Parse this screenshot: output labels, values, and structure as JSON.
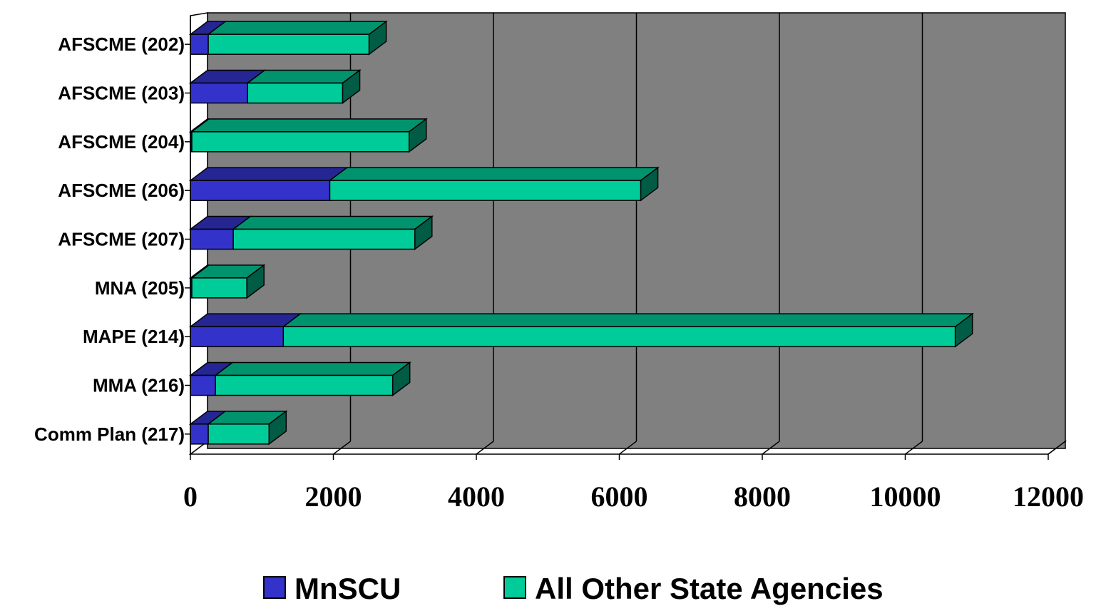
{
  "chart_data": {
    "type": "bar",
    "orientation": "horizontal",
    "stacked": true,
    "style": "3d",
    "categories": [
      "AFSCME (202)",
      "AFSCME (203)",
      "AFSCME (204)",
      "AFSCME (206)",
      "AFSCME (207)",
      "MNA (205)",
      "MAPE (214)",
      "MMA (216)",
      "Comm Plan (217)"
    ],
    "series": [
      {
        "name": "MnSCU",
        "color": "#3333cc",
        "values": [
          250,
          800,
          20,
          1950,
          600,
          20,
          1300,
          350,
          250
        ]
      },
      {
        "name": "All Other State Agencies",
        "color": "#00cc99",
        "values": [
          2250,
          1330,
          3040,
          4350,
          2540,
          770,
          9400,
          2480,
          850
        ]
      }
    ],
    "xlim": [
      0,
      12000
    ],
    "xticks": [
      "0",
      "2000",
      "4000",
      "6000",
      "8000",
      "10000",
      "12000"
    ],
    "grid": true,
    "plot_background": "#808080",
    "legend_position": "bottom"
  }
}
